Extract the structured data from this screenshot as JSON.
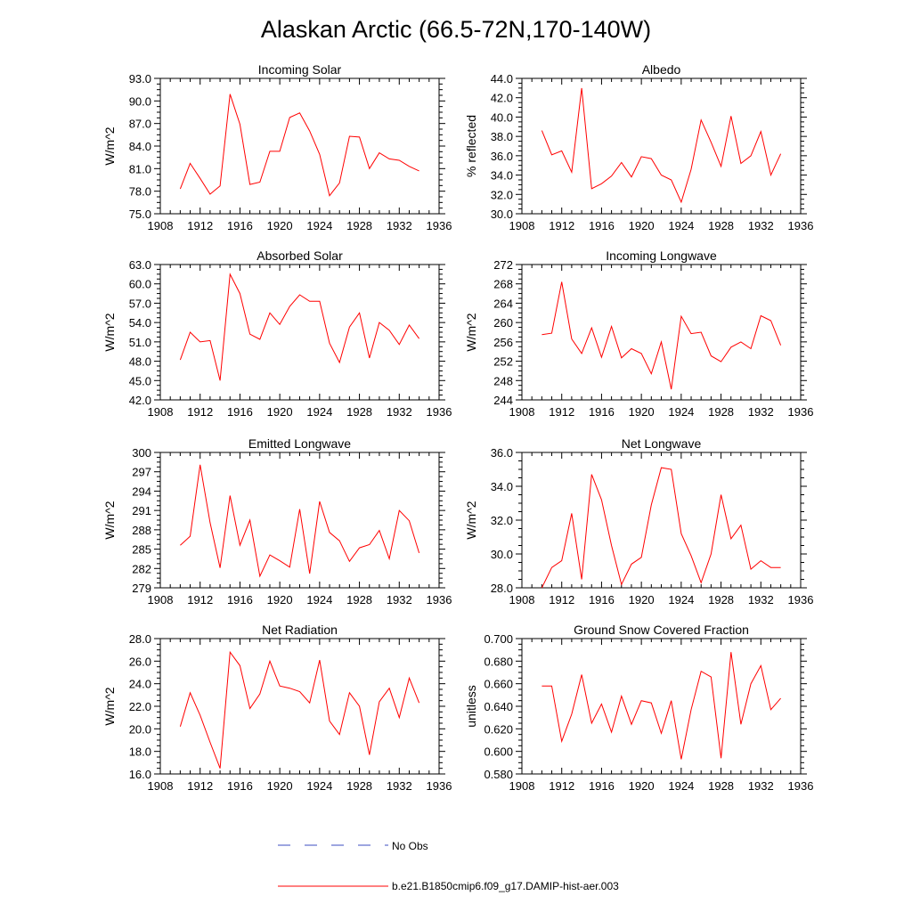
{
  "figure_title": "Alaskan Arctic (66.5-72N,170-140W)",
  "legend": {
    "obs_label": "No Obs",
    "model_label": "b.e21.B1850cmip6.f09_g17.DAMIP-hist-aer.003",
    "obs_color": "#3b4cc0",
    "model_color": "#ff0000"
  },
  "chart_data": [
    {
      "type": "line",
      "title": "Incoming Solar",
      "ylabel": "W/m^2",
      "xlim": [
        1908,
        1936
      ],
      "x_ticks": [
        "1908",
        "1912",
        "1916",
        "1920",
        "1924",
        "1928",
        "1932",
        "1936"
      ],
      "ylim": [
        75,
        93
      ],
      "y_ticks": [
        "75.0",
        "78.0",
        "81.0",
        "84.0",
        "87.0",
        "90.0",
        "93.0"
      ],
      "x": [
        1910,
        1911,
        1912,
        1913,
        1914,
        1915,
        1916,
        1917,
        1918,
        1919,
        1920,
        1921,
        1922,
        1923,
        1924,
        1925,
        1926,
        1927,
        1928,
        1929,
        1930,
        1931,
        1932,
        1933,
        1934
      ],
      "values": [
        78.3,
        81.7,
        79.7,
        77.6,
        78.7,
        90.9,
        86.9,
        78.9,
        79.2,
        83.3,
        83.3,
        87.8,
        88.4,
        86.0,
        82.9,
        77.4,
        79.1,
        85.3,
        85.2,
        81.0,
        83.1,
        82.3,
        82.1,
        81.3,
        80.7
      ],
      "color": "#ff0000"
    },
    {
      "type": "line",
      "title": "Albedo",
      "ylabel": "% reflected",
      "xlim": [
        1908,
        1936
      ],
      "x_ticks": [
        "1908",
        "1912",
        "1916",
        "1920",
        "1924",
        "1928",
        "1932",
        "1936"
      ],
      "ylim": [
        30,
        44
      ],
      "y_ticks": [
        "30.0",
        "32.0",
        "34.0",
        "36.0",
        "38.0",
        "40.0",
        "42.0",
        "44.0"
      ],
      "x": [
        1910,
        1911,
        1912,
        1913,
        1914,
        1915,
        1916,
        1917,
        1918,
        1919,
        1920,
        1921,
        1922,
        1923,
        1924,
        1925,
        1926,
        1927,
        1928,
        1929,
        1930,
        1931,
        1932,
        1933,
        1934
      ],
      "values": [
        38.6,
        36.1,
        36.5,
        34.3,
        43.0,
        32.6,
        33.1,
        33.9,
        35.3,
        33.8,
        35.9,
        35.7,
        34.0,
        33.5,
        31.2,
        34.6,
        39.7,
        37.4,
        34.9,
        40.1,
        35.2,
        36.0,
        38.5,
        34.0,
        36.2
      ],
      "color": "#ff0000"
    },
    {
      "type": "line",
      "title": "Absorbed Solar",
      "ylabel": "W/m^2",
      "xlim": [
        1908,
        1936
      ],
      "x_ticks": [
        "1908",
        "1912",
        "1916",
        "1920",
        "1924",
        "1928",
        "1932",
        "1936"
      ],
      "ylim": [
        42,
        63
      ],
      "y_ticks": [
        "42.0",
        "45.0",
        "48.0",
        "51.0",
        "54.0",
        "57.0",
        "60.0",
        "63.0"
      ],
      "x": [
        1910,
        1911,
        1912,
        1913,
        1914,
        1915,
        1916,
        1917,
        1918,
        1919,
        1920,
        1921,
        1922,
        1923,
        1924,
        1925,
        1926,
        1927,
        1928,
        1929,
        1930,
        1931,
        1932,
        1933,
        1934
      ],
      "values": [
        48.2,
        52.5,
        51.0,
        51.2,
        45.0,
        61.5,
        58.5,
        52.2,
        51.4,
        55.5,
        53.7,
        56.5,
        58.3,
        57.3,
        57.3,
        50.8,
        47.8,
        53.3,
        55.5,
        48.5,
        54.0,
        52.8,
        50.6,
        53.6,
        51.5
      ],
      "color": "#ff0000"
    },
    {
      "type": "line",
      "title": "Incoming Longwave",
      "ylabel": "W/m^2",
      "xlim": [
        1908,
        1936
      ],
      "x_ticks": [
        "1908",
        "1912",
        "1916",
        "1920",
        "1924",
        "1928",
        "1932",
        "1936"
      ],
      "ylim": [
        244,
        272
      ],
      "y_ticks": [
        "244",
        "248",
        "252",
        "256",
        "260",
        "264",
        "268",
        "272"
      ],
      "x": [
        1910,
        1911,
        1912,
        1913,
        1914,
        1915,
        1916,
        1917,
        1918,
        1919,
        1920,
        1921,
        1922,
        1923,
        1924,
        1925,
        1926,
        1927,
        1928,
        1929,
        1930,
        1931,
        1932,
        1933,
        1934
      ],
      "values": [
        257.5,
        257.8,
        268.4,
        256.6,
        253.6,
        258.9,
        252.8,
        259.2,
        252.7,
        254.6,
        253.6,
        249.4,
        256.0,
        246.2,
        261.3,
        257.7,
        258.0,
        253.1,
        251.9,
        254.9,
        256.0,
        254.6,
        261.4,
        260.4,
        255.3
      ],
      "color": "#ff0000"
    },
    {
      "type": "line",
      "title": "Emitted Longwave",
      "ylabel": "W/m^2",
      "xlim": [
        1908,
        1936
      ],
      "x_ticks": [
        "1908",
        "1912",
        "1916",
        "1920",
        "1924",
        "1928",
        "1932",
        "1936"
      ],
      "ylim": [
        279,
        300
      ],
      "y_ticks": [
        "279",
        "282",
        "285",
        "288",
        "291",
        "294",
        "297",
        "300"
      ],
      "x": [
        1910,
        1911,
        1912,
        1913,
        1914,
        1915,
        1916,
        1917,
        1918,
        1919,
        1920,
        1921,
        1922,
        1923,
        1924,
        1925,
        1926,
        1927,
        1928,
        1929,
        1930,
        1931,
        1932,
        1933,
        1934
      ],
      "values": [
        285.6,
        287.0,
        298.1,
        289.1,
        282.1,
        293.3,
        285.6,
        289.5,
        280.8,
        284.1,
        283.2,
        282.2,
        291.2,
        281.2,
        292.4,
        287.6,
        286.3,
        283.1,
        285.2,
        285.7,
        287.9,
        283.5,
        291.0,
        289.4,
        284.4
      ],
      "color": "#ff0000"
    },
    {
      "type": "line",
      "title": "Net Longwave",
      "ylabel": "W/m^2",
      "xlim": [
        1908,
        1936
      ],
      "x_ticks": [
        "1908",
        "1912",
        "1916",
        "1920",
        "1924",
        "1928",
        "1932",
        "1936"
      ],
      "ylim": [
        28,
        36
      ],
      "y_ticks": [
        "28.0",
        "30.0",
        "32.0",
        "34.0",
        "36.0"
      ],
      "x": [
        1910,
        1911,
        1912,
        1913,
        1914,
        1915,
        1916,
        1917,
        1918,
        1919,
        1920,
        1921,
        1922,
        1923,
        1924,
        1925,
        1926,
        1927,
        1928,
        1929,
        1930,
        1931,
        1932,
        1933,
        1934
      ],
      "values": [
        28.0,
        29.2,
        29.6,
        32.4,
        28.5,
        34.7,
        33.2,
        30.5,
        28.2,
        29.4,
        29.8,
        32.9,
        35.1,
        35.0,
        31.2,
        29.9,
        28.3,
        30.0,
        33.5,
        30.9,
        31.7,
        29.1,
        29.6,
        29.2,
        29.2
      ],
      "color": "#ff0000"
    },
    {
      "type": "line",
      "title": "Net Radiation",
      "ylabel": "W/m^2",
      "xlim": [
        1908,
        1936
      ],
      "x_ticks": [
        "1908",
        "1912",
        "1916",
        "1920",
        "1924",
        "1928",
        "1932",
        "1936"
      ],
      "ylim": [
        16,
        28
      ],
      "y_ticks": [
        "16.0",
        "18.0",
        "20.0",
        "22.0",
        "24.0",
        "26.0",
        "28.0"
      ],
      "x": [
        1910,
        1911,
        1912,
        1913,
        1914,
        1915,
        1916,
        1917,
        1918,
        1919,
        1920,
        1921,
        1922,
        1923,
        1924,
        1925,
        1926,
        1927,
        1928,
        1929,
        1930,
        1931,
        1932,
        1933,
        1934
      ],
      "values": [
        20.2,
        23.2,
        21.2,
        18.8,
        16.5,
        26.8,
        25.6,
        21.8,
        23.1,
        26.0,
        23.8,
        23.6,
        23.3,
        22.3,
        26.1,
        20.7,
        19.5,
        23.2,
        22.0,
        17.7,
        22.4,
        23.6,
        21.0,
        24.5,
        22.3
      ],
      "color": "#ff0000"
    },
    {
      "type": "line",
      "title": "Ground Snow Covered Fraction",
      "ylabel": "unitless",
      "xlim": [
        1908,
        1936
      ],
      "x_ticks": [
        "1908",
        "1912",
        "1916",
        "1920",
        "1924",
        "1928",
        "1932",
        "1936"
      ],
      "ylim": [
        0.58,
        0.7
      ],
      "y_ticks": [
        "0.580",
        "0.600",
        "0.620",
        "0.640",
        "0.660",
        "0.680",
        "0.700"
      ],
      "x": [
        1910,
        1911,
        1912,
        1913,
        1914,
        1915,
        1916,
        1917,
        1918,
        1919,
        1920,
        1921,
        1922,
        1923,
        1924,
        1925,
        1926,
        1927,
        1928,
        1929,
        1930,
        1931,
        1932,
        1933,
        1934
      ],
      "values": [
        0.658,
        0.658,
        0.609,
        0.633,
        0.668,
        0.625,
        0.642,
        0.617,
        0.649,
        0.624,
        0.645,
        0.643,
        0.616,
        0.645,
        0.593,
        0.637,
        0.671,
        0.666,
        0.594,
        0.688,
        0.624,
        0.66,
        0.676,
        0.637,
        0.647
      ],
      "color": "#ff0000"
    }
  ]
}
